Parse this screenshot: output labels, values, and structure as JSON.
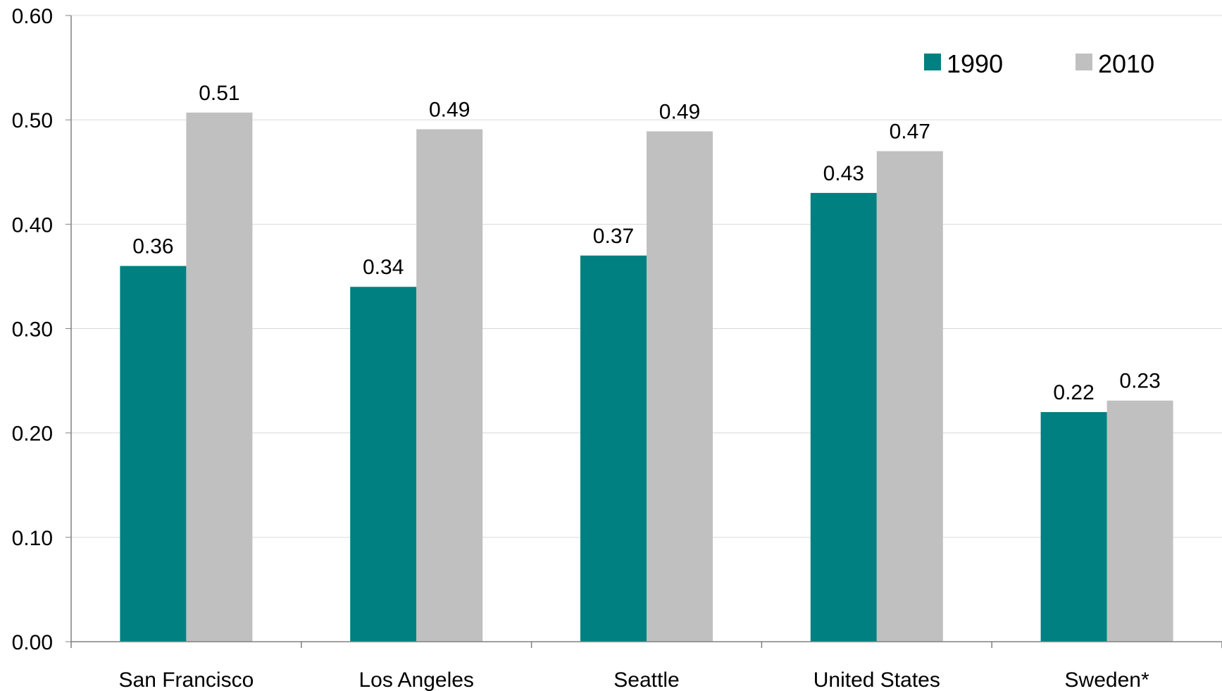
{
  "chart_data": {
    "type": "bar",
    "categories": [
      "San Francisco",
      "Los Angeles",
      "Seattle",
      "United States",
      "Sweden*"
    ],
    "series": [
      {
        "name": "1990",
        "values": [
          0.36,
          0.34,
          0.37,
          0.43,
          0.22
        ],
        "labels": [
          "0.36",
          "0.34",
          "0.37",
          "0.43",
          "0.22"
        ],
        "color": "#008080"
      },
      {
        "name": "2010",
        "values": [
          0.507,
          0.491,
          0.489,
          0.47,
          0.231
        ],
        "labels": [
          "0.51",
          "0.49",
          "0.49",
          "0.47",
          "0.23"
        ],
        "color": "#c0c0c0"
      }
    ],
    "yticks": [
      "0.00",
      "0.10",
      "0.20",
      "0.30",
      "0.40",
      "0.50",
      "0.60"
    ],
    "ylim": [
      0,
      0.6
    ],
    "grid": true,
    "legend": "top-right",
    "gridline_color": "#d9d9d9",
    "axis_color": "#808080"
  }
}
